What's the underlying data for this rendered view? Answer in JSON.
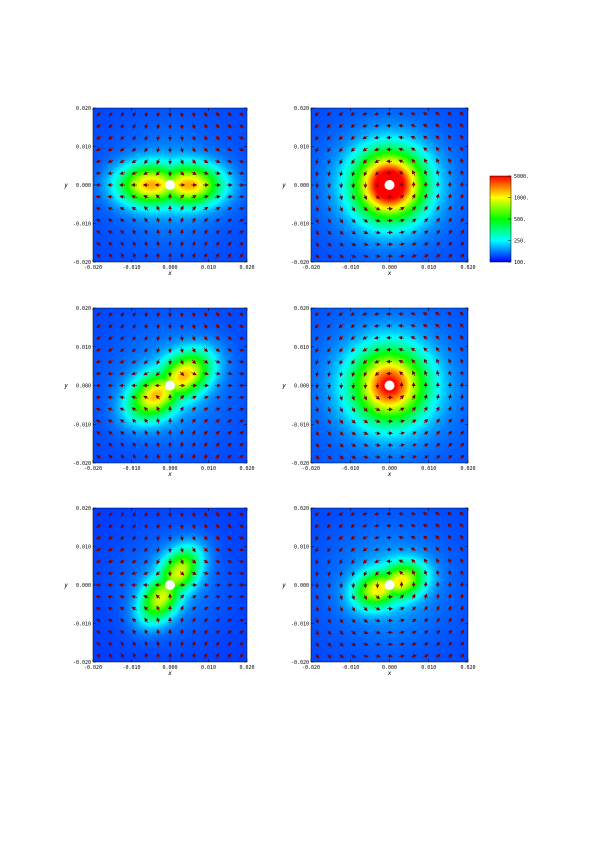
{
  "chart_data": [
    {
      "type": "heatmap",
      "panel": "top-left",
      "xlabel": "x",
      "ylabel": "y",
      "xlim": [
        -0.02,
        0.02
      ],
      "ylim": [
        -0.02,
        0.02
      ],
      "x_ticks": [
        "-0.020",
        "-0.010",
        "0.000",
        "0.010",
        "0.020"
      ],
      "y_ticks": [
        "-0.020",
        "-0.010",
        "0.000",
        "0.010",
        "0.020"
      ],
      "field": {
        "pattern": "bipolar",
        "angle_deg": 0,
        "lobe_offset": 0.0055,
        "lobe_sx": 0.0055,
        "lobe_sy": 0.0035,
        "peak": 0.72,
        "background": 0.06,
        "halo": 0.2
      },
      "vectors": "hyperbolic",
      "hole": {
        "x": 0.0,
        "y": 0.0
      }
    },
    {
      "type": "heatmap",
      "panel": "top-right",
      "xlabel": "x",
      "ylabel": "y",
      "xlim": [
        -0.02,
        0.02
      ],
      "ylim": [
        -0.02,
        0.02
      ],
      "x_ticks": [
        "-0.020",
        "-0.010",
        "0.000",
        "0.010",
        "0.020"
      ],
      "y_ticks": [
        "-0.020",
        "-0.010",
        "0.000",
        "0.010",
        "0.020"
      ],
      "field": {
        "pattern": "radial",
        "angle_deg": 0,
        "lobe_offset": 0,
        "lobe_sx": 0.006,
        "lobe_sy": 0.006,
        "peak": 0.95,
        "background": 0.06,
        "halo": 0.3
      },
      "vectors": "rotational",
      "hole": {
        "x": 0.0,
        "y": 0.0
      }
    },
    {
      "type": "heatmap",
      "panel": "middle-left",
      "xlabel": "x",
      "ylabel": "y",
      "xlim": [
        -0.02,
        0.02
      ],
      "ylim": [
        -0.02,
        0.02
      ],
      "x_ticks": [
        "-0.020",
        "-0.010",
        "0.000",
        "0.010",
        "0.020"
      ],
      "y_ticks": [
        "-0.020",
        "-0.010",
        "0.000",
        "0.010",
        "0.020"
      ],
      "field": {
        "pattern": "bipolar",
        "angle_deg": 35,
        "lobe_offset": 0.005,
        "lobe_sx": 0.005,
        "lobe_sy": 0.0035,
        "peak": 0.7,
        "background": 0.06,
        "halo": 0.2
      },
      "vectors": "hyperbolic",
      "hole": {
        "x": 0.0,
        "y": 0.0
      }
    },
    {
      "type": "heatmap",
      "panel": "middle-right",
      "xlabel": "x",
      "ylabel": "y",
      "xlim": [
        -0.02,
        0.02
      ],
      "ylim": [
        -0.02,
        0.02
      ],
      "x_ticks": [
        "-0.020",
        "-0.010",
        "0.000",
        "0.010",
        "0.020"
      ],
      "y_ticks": [
        "-0.020",
        "-0.010",
        "0.000",
        "0.010",
        "0.020"
      ],
      "field": {
        "pattern": "radial",
        "angle_deg": 0,
        "lobe_offset": 0,
        "lobe_sx": 0.0065,
        "lobe_sy": 0.0065,
        "peak": 0.78,
        "background": 0.07,
        "halo": 0.28
      },
      "vectors": "rotational",
      "hole": {
        "x": 0.0,
        "y": 0.0
      }
    },
    {
      "type": "heatmap",
      "panel": "bottom-left",
      "xlabel": "x",
      "ylabel": "y",
      "xlim": [
        -0.02,
        0.02
      ],
      "ylim": [
        -0.02,
        0.02
      ],
      "x_ticks": [
        "-0.020",
        "-0.010",
        "0.000",
        "0.010",
        "0.020"
      ],
      "y_ticks": [
        "-0.020",
        "-0.010",
        "0.000",
        "0.010",
        "0.020"
      ],
      "field": {
        "pattern": "bipolar",
        "angle_deg": 55,
        "lobe_offset": 0.0045,
        "lobe_sx": 0.0045,
        "lobe_sy": 0.003,
        "peak": 0.62,
        "background": 0.05,
        "halo": 0.16
      },
      "vectors": "hyperbolic",
      "hole": {
        "x": 0.0,
        "y": 0.0
      }
    },
    {
      "type": "heatmap",
      "panel": "bottom-right",
      "xlabel": "x",
      "ylabel": "y",
      "xlim": [
        -0.02,
        0.02
      ],
      "ylim": [
        -0.02,
        0.02
      ],
      "x_ticks": [
        "-0.020",
        "-0.010",
        "0.000",
        "0.010",
        "0.020"
      ],
      "y_ticks": [
        "-0.020",
        "-0.010",
        "0.000",
        "0.010",
        "0.020"
      ],
      "field": {
        "pattern": "bipolar",
        "angle_deg": 20,
        "lobe_offset": 0.0035,
        "lobe_sx": 0.004,
        "lobe_sy": 0.003,
        "peak": 0.62,
        "background": 0.06,
        "halo": 0.22
      },
      "vectors": "rotational",
      "hole": {
        "x": 0.0,
        "y": 0.0
      }
    }
  ],
  "colorbar": {
    "ticks": [
      "5000.",
      "1000.",
      "500.",
      "250.",
      "100."
    ],
    "colors": [
      "#ff0000",
      "#ffff00",
      "#00ff00",
      "#00ffff",
      "#0000ff"
    ]
  }
}
